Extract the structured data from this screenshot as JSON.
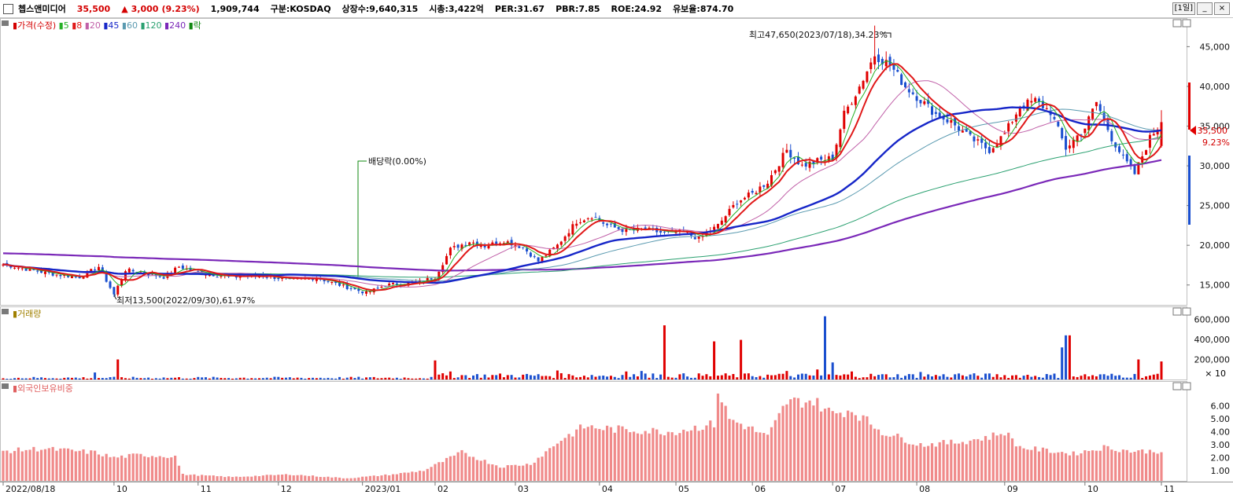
{
  "header": {
    "name": "쳅스앤미디어",
    "price": "35,500",
    "change_arrow": "▲",
    "change": "3,000",
    "change_pct": "(9.23%)",
    "volume": "1,909,744",
    "market": "구분:KOSDAQ",
    "shares": "상장수:9,640,315",
    "mcap": "시총:3,422억",
    "per": "PER:31.67",
    "pbr": "PBR:7.85",
    "roe": "ROE:24.92",
    "retention": "유보율:874.70",
    "period_btn": "[1일]",
    "min_btn": "_",
    "close_btn": "×"
  },
  "colors": {
    "up": "#e00000",
    "down": "#1a4fcf",
    "ma5": "#24b024",
    "ma8": "#e01818",
    "ma20": "#c060a8",
    "ma45": "#1626c8",
    "ma60": "#5a9ab0",
    "ma120": "#2aa070",
    "ma240": "#7a28b8",
    "ex_div": "#118811",
    "foreign": "#f08a8a",
    "volume_label": "#a08000"
  },
  "price_panel": {
    "legend": [
      {
        "label": "가격(수정)",
        "color": "#d40000",
        "icon": "candle-icon"
      },
      {
        "label": "5",
        "color": "#24b024"
      },
      {
        "label": "8",
        "color": "#e01818"
      },
      {
        "label": "20",
        "color": "#c060a8"
      },
      {
        "label": "45",
        "color": "#1626c8"
      },
      {
        "label": "60",
        "color": "#5a9ab0"
      },
      {
        "label": "120",
        "color": "#2aa070"
      },
      {
        "label": "240",
        "color": "#7a28b8"
      },
      {
        "label": "락",
        "color": "#118811"
      }
    ],
    "high_annotation": "최고47,650(2023/07/18),34.23%",
    "low_annotation": "최저13,500(2022/09/30),61.97%",
    "exdiv_annotation": "배당락(0.00%)",
    "current_tag": "35,500",
    "current_pct": "9.23%"
  },
  "volume_panel": {
    "title": "거래량",
    "unit": "× 10"
  },
  "foreign_panel": {
    "title": "외국인보유비중"
  },
  "chart_data": [
    {
      "type": "candlestick",
      "title": "가격(수정)",
      "y_ticks": [
        "45,000",
        "40,000",
        "35,000",
        "30,000",
        "25,000",
        "20,000",
        "15,000"
      ],
      "ylim": [
        12500,
        48500
      ],
      "x_ticks": [
        "2022/08/18",
        "10",
        "11",
        "12",
        "2023/01",
        "02",
        "03",
        "04",
        "05",
        "06",
        "07",
        "08",
        "09",
        "10",
        "11"
      ],
      "x_tick_pos": [
        0,
        29,
        51,
        72,
        94,
        113,
        134,
        156,
        176,
        196,
        217,
        239,
        262,
        283,
        303
      ],
      "n_days": 304,
      "close_anchors": [
        [
          0,
          17600
        ],
        [
          6,
          17000
        ],
        [
          14,
          16300
        ],
        [
          20,
          16000
        ],
        [
          25,
          17300
        ],
        [
          29,
          13800
        ],
        [
          32,
          16900
        ],
        [
          37,
          16500
        ],
        [
          42,
          16000
        ],
        [
          46,
          17300
        ],
        [
          52,
          16500
        ],
        [
          60,
          16000
        ],
        [
          68,
          16200
        ],
        [
          75,
          15600
        ],
        [
          82,
          15900
        ],
        [
          90,
          14700
        ],
        [
          95,
          14000
        ],
        [
          100,
          15000
        ],
        [
          108,
          15300
        ],
        [
          113,
          16000
        ],
        [
          117,
          19500
        ],
        [
          122,
          20500
        ],
        [
          126,
          19900
        ],
        [
          131,
          20600
        ],
        [
          136,
          19700
        ],
        [
          140,
          18000
        ],
        [
          145,
          20000
        ],
        [
          150,
          23000
        ],
        [
          154,
          23700
        ],
        [
          158,
          22500
        ],
        [
          163,
          21800
        ],
        [
          168,
          22000
        ],
        [
          173,
          21500
        ],
        [
          178,
          21700
        ],
        [
          182,
          20800
        ],
        [
          187,
          22500
        ],
        [
          192,
          25500
        ],
        [
          196,
          26500
        ],
        [
          200,
          28000
        ],
        [
          205,
          32000
        ],
        [
          209,
          30000
        ],
        [
          213,
          30600
        ],
        [
          217,
          31000
        ],
        [
          220,
          36500
        ],
        [
          224,
          40000
        ],
        [
          228,
          44000
        ],
        [
          232,
          42700
        ],
        [
          236,
          40000
        ],
        [
          240,
          38300
        ],
        [
          244,
          36500
        ],
        [
          248,
          35500
        ],
        [
          253,
          33500
        ],
        [
          258,
          32000
        ],
        [
          262,
          34000
        ],
        [
          266,
          37500
        ],
        [
          270,
          38200
        ],
        [
          274,
          36800
        ],
        [
          278,
          32200
        ],
        [
          283,
          34800
        ],
        [
          286,
          38000
        ],
        [
          290,
          33500
        ],
        [
          293,
          31000
        ],
        [
          296,
          29000
        ],
        [
          300,
          33500
        ],
        [
          303,
          35500
        ]
      ],
      "last_candle": {
        "open": 32500,
        "high": 37000,
        "low": 32300,
        "close": 35500
      },
      "high": {
        "value": 47650,
        "date": "2023/07/18"
      },
      "low": {
        "value": 13500,
        "date": "2022/09/30"
      },
      "ex_dividend_day_index": 90
    },
    {
      "type": "bar",
      "title": "거래량",
      "unit": "×10",
      "y_ticks": [
        "600,000",
        "400,000",
        "200,000"
      ],
      "ylim": [
        0,
        650000
      ],
      "spikes": [
        [
          24,
          70000
        ],
        [
          30,
          200000
        ],
        [
          113,
          190000
        ],
        [
          117,
          80000
        ],
        [
          145,
          90000
        ],
        [
          163,
          80000
        ],
        [
          167,
          85000
        ],
        [
          170,
          60000
        ],
        [
          173,
          540000
        ],
        [
          186,
          380000
        ],
        [
          193,
          395000
        ],
        [
          205,
          85000
        ],
        [
          213,
          100000
        ],
        [
          215,
          630000
        ],
        [
          217,
          170000
        ],
        [
          222,
          80000
        ],
        [
          240,
          75000
        ],
        [
          250,
          60000
        ],
        [
          277,
          320000
        ],
        [
          278,
          440000
        ],
        [
          279,
          440000
        ],
        [
          297,
          200000
        ],
        [
          303,
          180000
        ]
      ]
    },
    {
      "type": "bar",
      "title": "외국인보유비중",
      "y_ticks": [
        "6.00",
        "5.00",
        "4.00",
        "3.00",
        "2.00",
        "1.00"
      ],
      "ylim": [
        0.2,
        7.2
      ],
      "level_anchors": [
        [
          0,
          2.5
        ],
        [
          10,
          2.7
        ],
        [
          24,
          2.4
        ],
        [
          29,
          2.0
        ],
        [
          35,
          2.2
        ],
        [
          45,
          2.1
        ],
        [
          47,
          0.7
        ],
        [
          60,
          0.5
        ],
        [
          75,
          0.7
        ],
        [
          90,
          0.4
        ],
        [
          102,
          0.7
        ],
        [
          110,
          1.0
        ],
        [
          120,
          2.4
        ],
        [
          130,
          1.3
        ],
        [
          138,
          1.5
        ],
        [
          146,
          3.4
        ],
        [
          152,
          4.4
        ],
        [
          160,
          4.2
        ],
        [
          175,
          4.0
        ],
        [
          186,
          4.6
        ],
        [
          187,
          7.2
        ],
        [
          190,
          5.0
        ],
        [
          196,
          4.2
        ],
        [
          200,
          3.6
        ],
        [
          205,
          6.3
        ],
        [
          212,
          6.4
        ],
        [
          217,
          5.4
        ],
        [
          222,
          5.7
        ],
        [
          230,
          4.0
        ],
        [
          240,
          3.0
        ],
        [
          250,
          3.2
        ],
        [
          258,
          3.6
        ],
        [
          262,
          4.0
        ],
        [
          266,
          2.8
        ],
        [
          280,
          2.3
        ],
        [
          288,
          2.8
        ],
        [
          295,
          2.5
        ],
        [
          303,
          2.5
        ]
      ]
    }
  ]
}
